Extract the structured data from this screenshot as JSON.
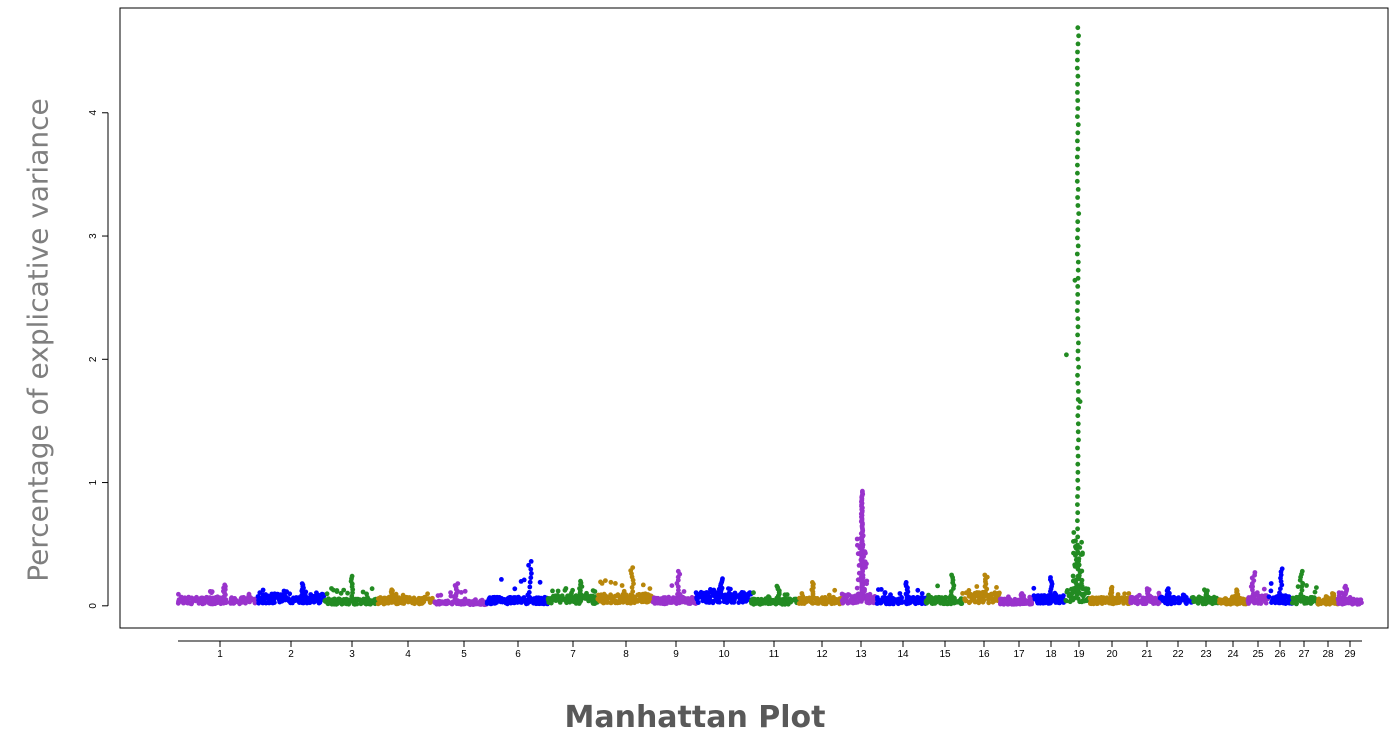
{
  "chart_data": {
    "type": "scatter",
    "title": "Manhattan Plot",
    "ylabel": "Percentage of explicative variance",
    "xlabel": "",
    "ylim": [
      -0.18,
      4.85
    ],
    "y_ticks": [
      0,
      1,
      2,
      3,
      4
    ],
    "grid": false,
    "legend": "none",
    "palette": [
      "#9933CC",
      "#0000FF",
      "#228B22",
      "#B8860B"
    ],
    "chromosomes": [
      {
        "label": "1",
        "baseline": 0.05,
        "max": 0.17
      },
      {
        "label": "2",
        "baseline": 0.07,
        "max": 0.18
      },
      {
        "label": "3",
        "baseline": 0.04,
        "max": 0.24
      },
      {
        "label": "4",
        "baseline": 0.05,
        "max": 0.13
      },
      {
        "label": "5",
        "baseline": 0.03,
        "max": 0.18
      },
      {
        "label": "6",
        "baseline": 0.05,
        "max": 0.36
      },
      {
        "label": "7",
        "baseline": 0.06,
        "max": 0.2
      },
      {
        "label": "8",
        "baseline": 0.07,
        "max": 0.31
      },
      {
        "label": "9",
        "baseline": 0.05,
        "max": 0.28
      },
      {
        "label": "10",
        "baseline": 0.08,
        "max": 0.22
      },
      {
        "label": "11",
        "baseline": 0.04,
        "max": 0.16
      },
      {
        "label": "12",
        "baseline": 0.05,
        "max": 0.19
      },
      {
        "label": "13",
        "baseline": 0.07,
        "max": 0.93
      },
      {
        "label": "14",
        "baseline": 0.05,
        "max": 0.19
      },
      {
        "label": "15",
        "baseline": 0.05,
        "max": 0.25
      },
      {
        "label": "16",
        "baseline": 0.08,
        "max": 0.25
      },
      {
        "label": "17",
        "baseline": 0.04,
        "max": 0.1
      },
      {
        "label": "18",
        "baseline": 0.06,
        "max": 0.23
      },
      {
        "label": "19",
        "baseline": 0.1,
        "max": 4.69
      },
      {
        "label": "20",
        "baseline": 0.05,
        "max": 0.15
      },
      {
        "label": "21",
        "baseline": 0.05,
        "max": 0.14
      },
      {
        "label": "22",
        "baseline": 0.05,
        "max": 0.14
      },
      {
        "label": "23",
        "baseline": 0.05,
        "max": 0.13
      },
      {
        "label": "24",
        "baseline": 0.04,
        "max": 0.13
      },
      {
        "label": "25",
        "baseline": 0.06,
        "max": 0.27
      },
      {
        "label": "26",
        "baseline": 0.06,
        "max": 0.3
      },
      {
        "label": "27",
        "baseline": 0.05,
        "max": 0.28
      },
      {
        "label": "28",
        "baseline": 0.04,
        "max": 0.1
      },
      {
        "label": "29",
        "baseline": 0.04,
        "max": 0.16
      }
    ]
  }
}
